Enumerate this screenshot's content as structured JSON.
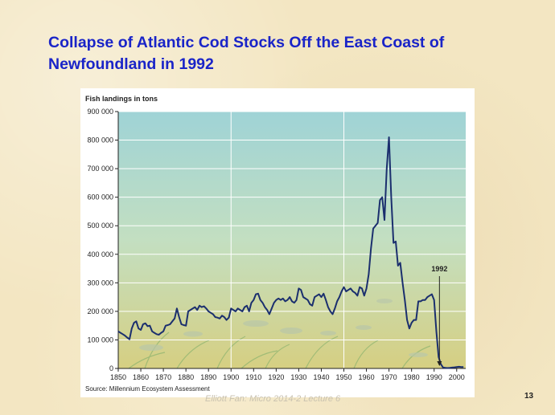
{
  "slide": {
    "title_line1": "Collapse of Atlantic Cod Stocks Off the East Coast of",
    "title_line2": "Newfoundland in 1992",
    "footer": "Elliott Fan: Micro 2014-2 Lecture 6",
    "page_number": "13"
  },
  "colors": {
    "title": "#1a24c8",
    "line": "#1b2f6e",
    "sky_top": "#9fd3d6",
    "sand_bottom": "#d6cf82"
  },
  "chart_data": {
    "type": "line",
    "ylabel": "Fish landings in tons",
    "source": "Source: Millennium Ecosystem Assessment",
    "annotation": "1992",
    "annotation_x": 1992,
    "xlim": [
      1850,
      2004
    ],
    "ylim": [
      0,
      900000
    ],
    "x_ticks": [
      1850,
      1860,
      1870,
      1880,
      1890,
      1900,
      1910,
      1920,
      1930,
      1940,
      1950,
      1960,
      1970,
      1980,
      1990,
      2000
    ],
    "y_ticks": [
      0,
      100000,
      200000,
      300000,
      400000,
      500000,
      600000,
      700000,
      800000,
      900000
    ],
    "y_tick_labels": [
      "0",
      "100 000",
      "200 000",
      "300 000",
      "400 000",
      "500 000",
      "600 000",
      "700 000",
      "800 000",
      "900 000"
    ],
    "grid_x": [
      1900,
      1950
    ],
    "series": [
      {
        "x": [
          1850,
          1851,
          1852,
          1853,
          1854,
          1855,
          1856,
          1857,
          1858,
          1859,
          1860,
          1861,
          1862,
          1863,
          1864,
          1865,
          1866,
          1867,
          1868,
          1869,
          1870,
          1871,
          1872,
          1873,
          1874,
          1875,
          1876,
          1877,
          1878,
          1879,
          1880,
          1881,
          1882,
          1883,
          1884,
          1885,
          1886,
          1887,
          1888,
          1889,
          1890,
          1891,
          1892,
          1893,
          1894,
          1895,
          1896,
          1897,
          1898,
          1899,
          1900,
          1901,
          1902,
          1903,
          1904,
          1905,
          1906,
          1907,
          1908,
          1909,
          1910,
          1911,
          1912,
          1913,
          1914,
          1915,
          1916,
          1917,
          1918,
          1919,
          1920,
          1921,
          1922,
          1923,
          1924,
          1925,
          1926,
          1927,
          1928,
          1929,
          1930,
          1931,
          1932,
          1933,
          1934,
          1935,
          1936,
          1937,
          1938,
          1939,
          1940,
          1941,
          1942,
          1943,
          1944,
          1945,
          1946,
          1947,
          1948,
          1949,
          1950,
          1951,
          1952,
          1953,
          1954,
          1955,
          1956,
          1957,
          1958,
          1959,
          1960,
          1961,
          1962,
          1963,
          1964,
          1965,
          1966,
          1967,
          1968,
          1969,
          1970,
          1971,
          1972,
          1973,
          1974,
          1975,
          1976,
          1977,
          1978,
          1979,
          1980,
          1981,
          1982,
          1983,
          1984,
          1985,
          1986,
          1987,
          1988,
          1989,
          1990,
          1991,
          1992,
          1993,
          1994,
          1995,
          1996,
          1997,
          1998,
          1999,
          2000,
          2001,
          2002,
          2003
        ],
        "y": [
          130000,
          125000,
          120000,
          115000,
          108000,
          102000,
          140000,
          160000,
          165000,
          140000,
          135000,
          155000,
          158000,
          148000,
          150000,
          130000,
          125000,
          120000,
          118000,
          125000,
          130000,
          150000,
          152000,
          155000,
          165000,
          175000,
          210000,
          180000,
          155000,
          152000,
          150000,
          200000,
          205000,
          210000,
          215000,
          205000,
          220000,
          215000,
          218000,
          210000,
          200000,
          195000,
          190000,
          180000,
          178000,
          175000,
          185000,
          180000,
          170000,
          178000,
          210000,
          205000,
          200000,
          210000,
          205000,
          200000,
          215000,
          220000,
          200000,
          230000,
          240000,
          260000,
          262000,
          240000,
          230000,
          215000,
          205000,
          190000,
          210000,
          230000,
          240000,
          245000,
          240000,
          245000,
          235000,
          240000,
          250000,
          235000,
          230000,
          240000,
          280000,
          275000,
          250000,
          245000,
          240000,
          225000,
          220000,
          250000,
          255000,
          260000,
          250000,
          262000,
          240000,
          215000,
          200000,
          190000,
          210000,
          235000,
          250000,
          270000,
          285000,
          270000,
          275000,
          280000,
          270000,
          265000,
          255000,
          285000,
          280000,
          255000,
          280000,
          330000,
          420000,
          490000,
          500000,
          510000,
          590000,
          600000,
          520000,
          700000,
          810000,
          600000,
          440000,
          445000,
          360000,
          370000,
          300000,
          240000,
          170000,
          140000,
          160000,
          170000,
          170000,
          235000,
          235000,
          240000,
          240000,
          250000,
          255000,
          260000,
          240000,
          130000,
          40000,
          15000,
          3000,
          2000,
          1500,
          2000,
          3000,
          4000,
          5000,
          6000,
          5000,
          5000
        ]
      }
    ]
  }
}
